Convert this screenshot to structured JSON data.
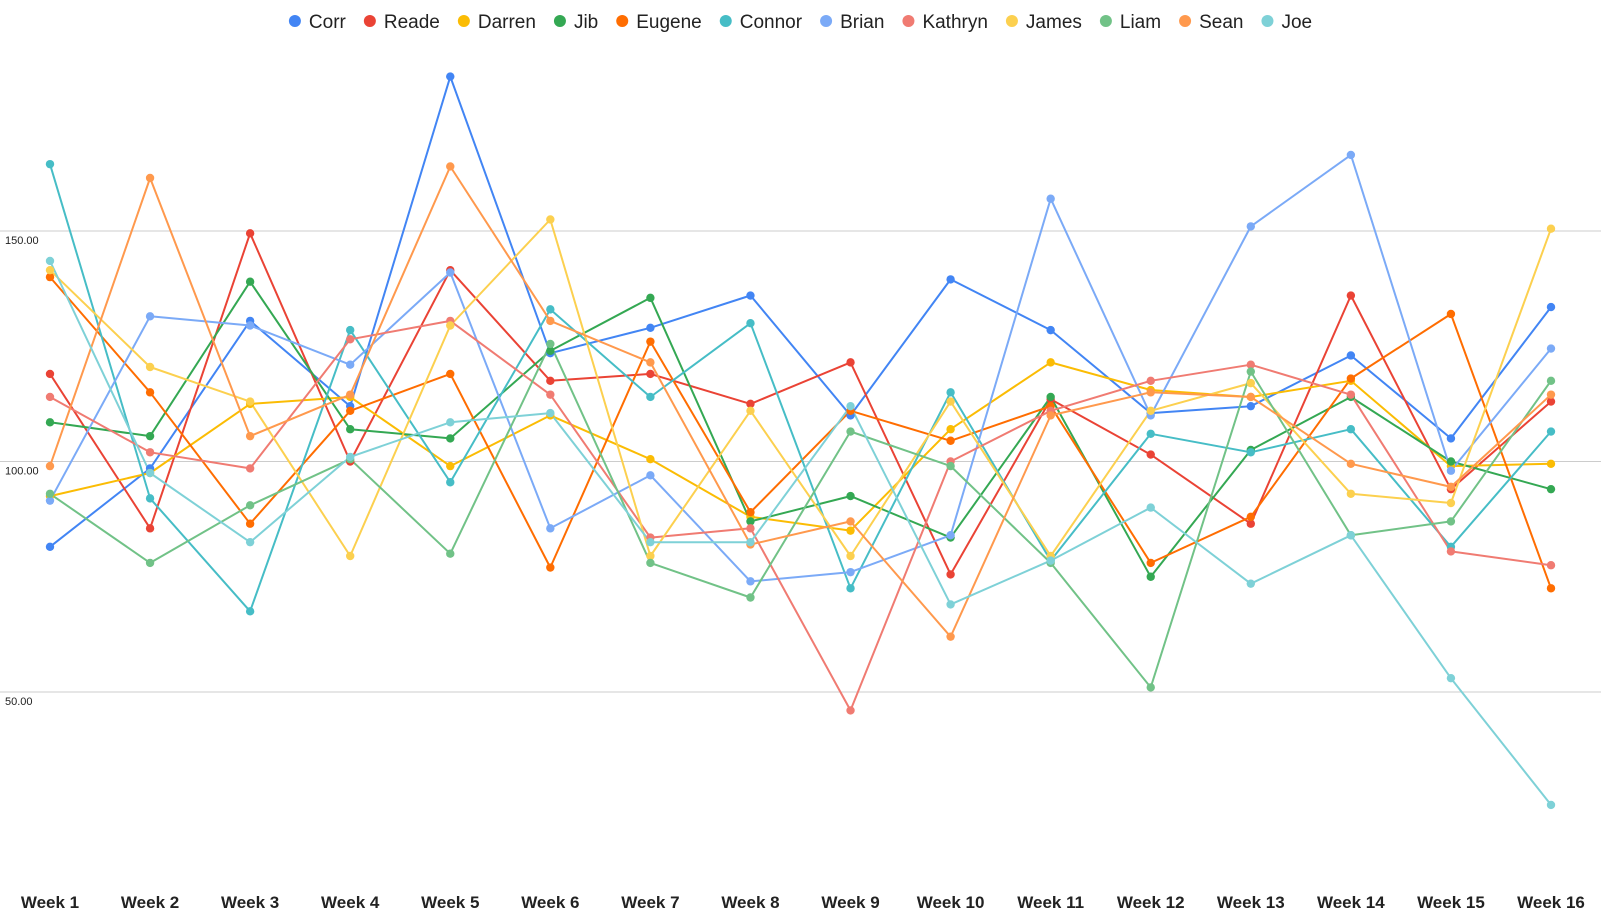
{
  "chart_data": {
    "type": "line",
    "title": "",
    "xlabel": "",
    "ylabel": "",
    "categories": [
      "Week 1",
      "Week 2",
      "Week 3",
      "Week 4",
      "Week 5",
      "Week 6",
      "Week 7",
      "Week 8",
      "Week 9",
      "Week 10",
      "Week 11",
      "Week 12",
      "Week 13",
      "Week 14",
      "Week 15",
      "Week 16"
    ],
    "yticks": [
      {
        "value": 50,
        "label": "50.00"
      },
      {
        "value": 100,
        "label": "100.00"
      },
      {
        "value": 150,
        "label": "150.00"
      }
    ],
    "ylim": [
      8,
      190
    ],
    "grid": true,
    "legend_position": "top",
    "series": [
      {
        "name": "Corr",
        "color": "#4285F4",
        "values": [
          81.5,
          98.5,
          130.5,
          112,
          183.5,
          123.5,
          129,
          136,
          110,
          139.5,
          128.5,
          110.5,
          112,
          123,
          105,
          133.5
        ]
      },
      {
        "name": "Reade",
        "color": "#EA4335",
        "values": [
          119,
          85.5,
          149.5,
          100,
          141.5,
          117.5,
          119,
          112.5,
          121.5,
          75.5,
          113.5,
          101.5,
          86.5,
          136,
          94,
          113
        ]
      },
      {
        "name": "Darren",
        "color": "#FBBC04",
        "values": [
          92.5,
          97.5,
          112.5,
          114,
          99,
          110,
          100.5,
          88,
          85,
          107,
          121.5,
          115.5,
          114,
          117.5,
          99,
          99.5
        ]
      },
      {
        "name": "Jib",
        "color": "#34A853",
        "values": [
          108.5,
          105.5,
          139,
          107,
          105,
          124,
          135.5,
          87,
          92.5,
          83.5,
          114,
          75,
          102.5,
          114,
          100,
          94
        ]
      },
      {
        "name": "Eugene",
        "color": "#FF6D01",
        "values": [
          140,
          115,
          86.5,
          111,
          119,
          77,
          126,
          89,
          111,
          104.5,
          112,
          78,
          88,
          118,
          132,
          72.5
        ]
      },
      {
        "name": "Connor",
        "color": "#46BDC6",
        "values": [
          164.5,
          92,
          67.5,
          128.5,
          95.5,
          133,
          114,
          130,
          72.5,
          115,
          78.5,
          106,
          102,
          107,
          81.5,
          106.5
        ]
      },
      {
        "name": "Brian",
        "color": "#7BAAF7",
        "values": [
          91.5,
          131.5,
          129.5,
          121,
          141,
          85.5,
          97,
          74,
          76,
          84,
          157,
          110,
          151,
          166.5,
          98,
          124.5
        ]
      },
      {
        "name": "Kathryn",
        "color": "#F07B72",
        "values": [
          114,
          102,
          98.5,
          126.5,
          130.5,
          114.5,
          83.5,
          85.5,
          46,
          100,
          111,
          117.5,
          121,
          114.5,
          80.5,
          77.5
        ]
      },
      {
        "name": "James",
        "color": "#FCD04F",
        "values": [
          141.5,
          120.5,
          113,
          79.5,
          129.5,
          152.5,
          79.5,
          111,
          79.5,
          113,
          79.5,
          111,
          117,
          93,
          91,
          150.5
        ]
      },
      {
        "name": "Liam",
        "color": "#71C287",
        "values": [
          93,
          78,
          90.5,
          100.5,
          80,
          125.5,
          78,
          70.5,
          106.5,
          99,
          78,
          51,
          119.5,
          84,
          87,
          117.5
        ]
      },
      {
        "name": "Sean",
        "color": "#FF994D",
        "values": [
          99,
          161.5,
          105.5,
          114.5,
          164,
          130.5,
          121.5,
          82,
          87,
          62,
          110,
          115,
          114,
          99.5,
          94.5,
          114.5
        ]
      },
      {
        "name": "Joe",
        "color": "#7ED1D7",
        "values": [
          143.5,
          97.5,
          82.5,
          101,
          108.5,
          110.5,
          82.5,
          82.5,
          112,
          69,
          78.5,
          90,
          73.5,
          84,
          53,
          25.5
        ]
      }
    ]
  }
}
